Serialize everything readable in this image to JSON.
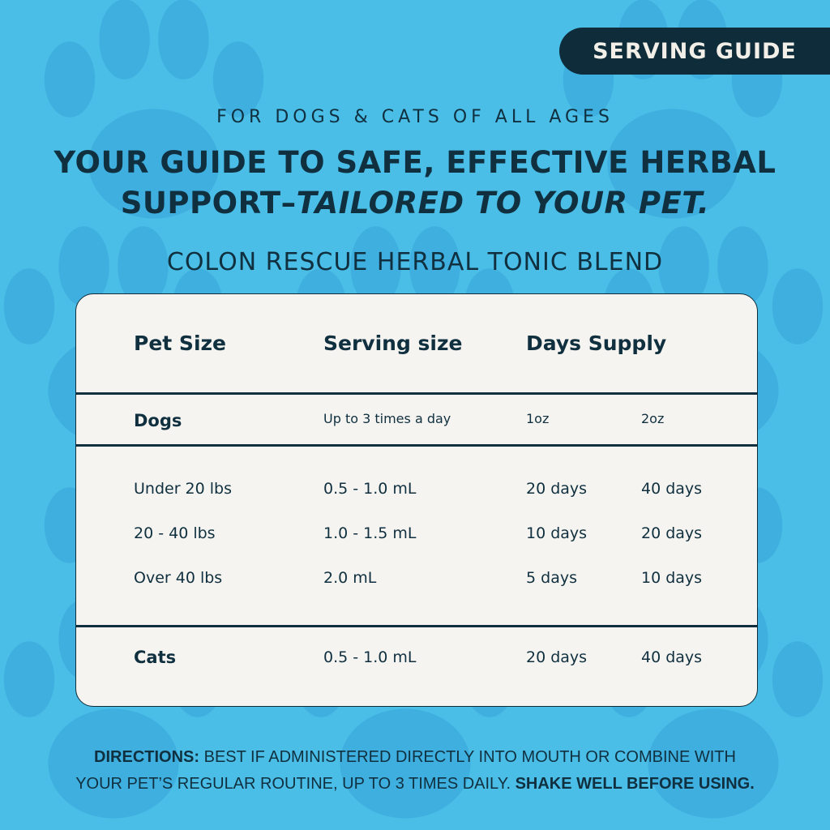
{
  "colors": {
    "background": "#4bbee7",
    "paw": "#3fafe0",
    "banner": "#0e2c3a",
    "text": "#10303f",
    "card": "#f6f4f0"
  },
  "banner": "SERVING GUIDE",
  "subtitle": "FOR DOGS & CATS OF ALL AGES",
  "headline": {
    "line1": "YOUR GUIDE TO SAFE, EFFECTIVE HERBAL",
    "line2_plain": "SUPPORT–",
    "line2_italic": "TAILORED TO YOUR PET."
  },
  "product": "COLON RESCUE HERBAL TONIC BLEND",
  "table": {
    "headers": [
      "Pet Size",
      "Serving size",
      "Days Supply"
    ],
    "dogs": {
      "label": "Dogs",
      "serving": "Up to 3 times a day",
      "col1": "1oz",
      "col2": "2oz"
    },
    "rows": [
      [
        "Under 20 lbs",
        "0.5 - 1.0 mL",
        "20 days",
        "40 days"
      ],
      [
        "20 - 40 lbs",
        "1.0 - 1.5 mL",
        "10 days",
        "20 days"
      ],
      [
        "Over 40 lbs",
        "2.0 mL",
        "5 days",
        "10 days"
      ]
    ],
    "cats": [
      "Cats",
      "0.5 - 1.0 mL",
      "20 days",
      "40 days"
    ]
  },
  "directions": {
    "label": "DIRECTIONS:",
    "text1": " BEST IF ADMINISTERED DIRECTLY INTO MOUTH OR COMBINE WITH",
    "text2": "YOUR PET’S REGULAR ROUTINE, UP TO 3 TIMES DAILY. ",
    "bold_end": "SHAKE WELL BEFORE USING."
  }
}
